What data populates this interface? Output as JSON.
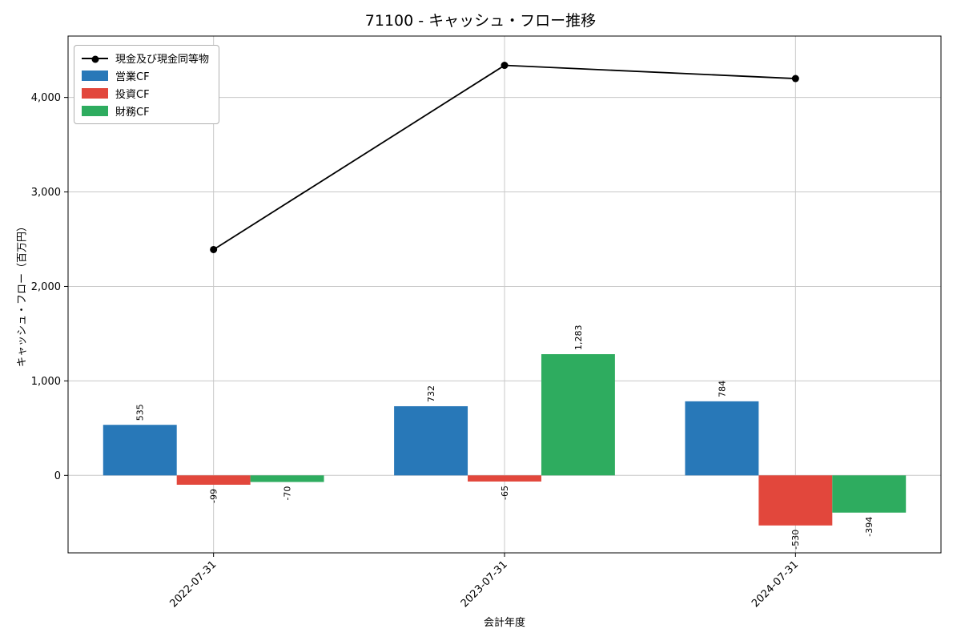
{
  "chart_data": {
    "type": "bar",
    "title": "71100 - キャッシュ・フロー推移",
    "xlabel": "会計年度",
    "ylabel": "キャッシュ・フロー（百万円）",
    "categories": [
      "2022-07-31",
      "2023-07-31",
      "2024-07-31"
    ],
    "bar_series": [
      {
        "name": "営業CF",
        "color": "#2878b8",
        "values": [
          535,
          732,
          784
        ]
      },
      {
        "name": "投資CF",
        "color": "#e2473c",
        "values": [
          -99,
          -65,
          -530
        ]
      },
      {
        "name": "財務CF",
        "color": "#2eac5f",
        "values": [
          -70,
          1283,
          -394
        ]
      }
    ],
    "line_series": {
      "name": "現金及び現金同等物",
      "color": "#000000",
      "values": [
        2390,
        4340,
        4200
      ]
    },
    "yticks": [
      0,
      1000,
      2000,
      3000,
      4000
    ],
    "ylim": [
      -820,
      4650
    ],
    "grid": true,
    "legend_position": "upper left"
  }
}
